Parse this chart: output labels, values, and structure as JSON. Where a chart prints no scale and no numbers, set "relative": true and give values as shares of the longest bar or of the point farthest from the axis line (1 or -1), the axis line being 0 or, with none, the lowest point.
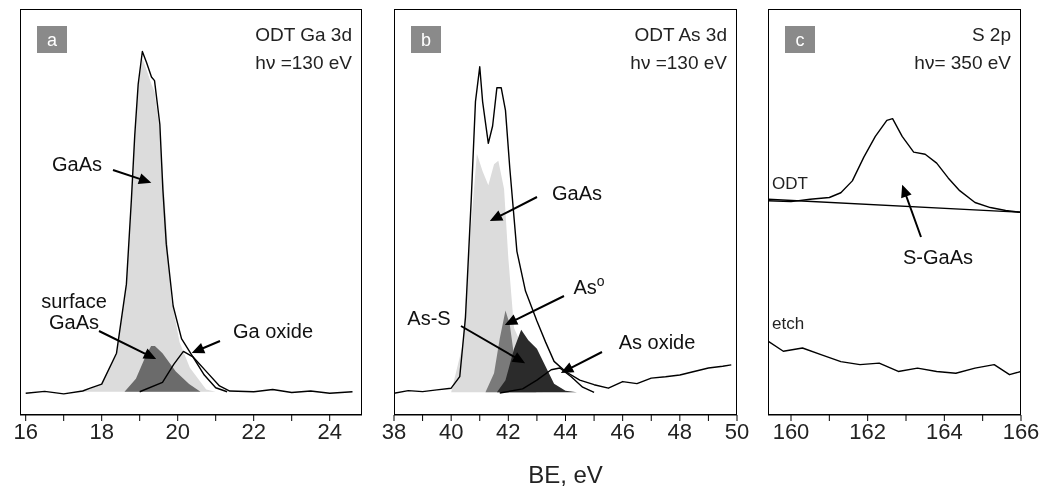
{
  "chart_data": [
    {
      "type": "line",
      "relative": true,
      "title": "ODT Ga 3d",
      "subtitle": "hν =130 eV",
      "xlim": [
        15.85,
        24.85
      ],
      "xticks": [
        16,
        {
          "value": 17,
          "label": null
        },
        18,
        {
          "value": 19,
          "label": null
        },
        20,
        {
          "value": 21,
          "label": null
        },
        22,
        {
          "value": 23,
          "label": null
        },
        24
      ],
      "series": [
        {
          "type": "area",
          "color": "#dcdcdc",
          "x": [
            17.3,
            17.7,
            18.0,
            18.4,
            18.65,
            18.78,
            18.87,
            18.96,
            19.07,
            19.18,
            19.31,
            19.39,
            19.53,
            19.66,
            19.83,
            20.05,
            20.32,
            20.75,
            21.0
          ],
          "values": [
            0.064,
            0.073,
            0.085,
            0.17,
            0.36,
            0.59,
            0.77,
            0.9,
            0.98,
            0.95,
            0.91,
            0.89,
            0.78,
            0.59,
            0.32,
            0.2,
            0.13,
            0.07,
            0.064
          ]
        },
        {
          "type": "area",
          "color": "#6b6b6b",
          "x": [
            18.6,
            18.9,
            19.15,
            19.3,
            19.4,
            19.6,
            19.95,
            20.3,
            20.6
          ],
          "values": [
            0.064,
            0.1,
            0.16,
            0.19,
            0.19,
            0.17,
            0.12,
            0.085,
            0.064
          ]
        },
        {
          "color": "#000000",
          "x": [
            19.0,
            19.6,
            19.9,
            20.15,
            20.4,
            20.7,
            21.0,
            21.3
          ],
          "values": [
            0.064,
            0.09,
            0.14,
            0.175,
            0.16,
            0.11,
            0.075,
            0.064
          ]
        },
        {
          "color": "#000000",
          "x": [
            16,
            16.5,
            17,
            17.5,
            17.68,
            18.0,
            18.39,
            18.65,
            18.78,
            18.87,
            18.96,
            19.07,
            19.18,
            19.31,
            19.39,
            19.53,
            19.61,
            19.7,
            19.88,
            20.1,
            20.4,
            20.75,
            21.1,
            21.37,
            22,
            22.5,
            23,
            23.5,
            24,
            24.6
          ],
          "values": [
            0.06,
            0.065,
            0.058,
            0.066,
            0.073,
            0.085,
            0.17,
            0.36,
            0.59,
            0.77,
            0.91,
            1,
            0.97,
            0.93,
            0.92,
            0.8,
            0.62,
            0.47,
            0.3,
            0.21,
            0.16,
            0.12,
            0.08,
            0.066,
            0.064,
            0.07,
            0.062,
            0.066,
            0.06,
            0.064
          ]
        }
      ],
      "annotations": [
        "a",
        "GaAs",
        "surface GaAs",
        "Ga oxide"
      ]
    },
    {
      "type": "line",
      "relative": true,
      "title": "ODT As 3d",
      "subtitle": "hν =130 eV",
      "xlabel": "BE, eV",
      "xlim": [
        38,
        50
      ],
      "xticks": [
        38,
        {
          "value": 39,
          "label": null
        },
        40,
        {
          "value": 41,
          "label": null
        },
        42,
        {
          "value": 43,
          "label": null
        },
        44,
        {
          "value": 45,
          "label": null
        },
        46,
        {
          "value": 47,
          "label": null
        },
        48,
        {
          "value": 49,
          "label": null
        },
        50
      ],
      "series": [
        {
          "type": "area",
          "color": "#dcdcdc",
          "x": [
            40.0,
            40.4,
            40.7,
            40.9,
            41.1,
            41.3,
            41.5,
            41.65,
            41.85,
            42.0,
            42.2,
            43.2
          ],
          "values": [
            0.065,
            0.2,
            0.55,
            0.75,
            0.7,
            0.66,
            0.72,
            0.73,
            0.65,
            0.45,
            0.25,
            0.065
          ]
        },
        {
          "type": "area",
          "color": "#7a7a7a",
          "x": [
            41.2,
            41.5,
            41.7,
            41.9,
            42.05,
            42.2,
            42.7,
            43.0
          ],
          "values": [
            0.065,
            0.12,
            0.22,
            0.3,
            0.26,
            0.17,
            0.07,
            0.065
          ]
        },
        {
          "type": "area",
          "color": "#2b2b2b",
          "x": [
            41.6,
            41.9,
            42.2,
            42.45,
            42.7,
            43.0,
            43.3,
            43.6,
            44.0,
            44.4
          ],
          "values": [
            0.065,
            0.1,
            0.19,
            0.245,
            0.215,
            0.19,
            0.14,
            0.09,
            0.07,
            0.065
          ]
        },
        {
          "color": "#000000",
          "x": [
            41.7,
            42.5,
            43.0,
            43.5,
            43.8,
            44.2,
            44.6,
            45.0
          ],
          "values": [
            0.063,
            0.075,
            0.1,
            0.13,
            0.135,
            0.11,
            0.08,
            0.065
          ]
        },
        {
          "color": "#000000",
          "x": [
            38,
            38.5,
            39,
            39.5,
            40,
            40.3,
            40.5,
            40.7,
            40.85,
            41.0,
            41.1,
            41.3,
            41.45,
            41.6,
            41.75,
            41.9,
            42.05,
            42.3,
            42.6,
            43.0,
            43.3,
            43.6,
            44.0,
            44.5,
            45,
            45.5,
            46,
            46.5,
            47,
            47.5,
            48,
            48.5,
            49,
            49.5,
            49.8
          ],
          "values": [
            0.0625,
            0.07,
            0.067,
            0.072,
            0.077,
            0.11,
            0.28,
            0.615,
            0.9,
            1,
            0.9,
            0.78,
            0.83,
            0.94,
            0.94,
            0.875,
            0.71,
            0.47,
            0.356,
            0.27,
            0.21,
            0.154,
            0.125,
            0.1,
            0.087,
            0.077,
            0.096,
            0.09,
            0.106,
            0.11,
            0.115,
            0.125,
            0.135,
            0.14,
            0.144
          ]
        }
      ],
      "annotations": [
        "b",
        "GaAs",
        "As$^{o}$",
        "As-S",
        "As oxide"
      ]
    },
    {
      "type": "line",
      "relative": true,
      "title": "S 2p",
      "subtitle": "hν= 350 eV",
      "xlim": [
        159.4,
        166
      ],
      "xticks": [
        160,
        {
          "value": 161,
          "label": null
        },
        162,
        {
          "value": 163,
          "label": null
        },
        164,
        {
          "value": 165,
          "label": null
        },
        166
      ],
      "series": [
        {
          "name": "ODT",
          "color": "#000000",
          "x": [
            159.4,
            160,
            160.5,
            161,
            161.3,
            161.6,
            161.9,
            162.2,
            162.5,
            162.65,
            162.9,
            163.2,
            163.5,
            163.8,
            164.1,
            164.4,
            164.8,
            165.2,
            165.6,
            166
          ],
          "values": [
            0.723,
            0.72,
            0.728,
            0.734,
            0.75,
            0.79,
            0.87,
            0.94,
            0.994,
            1,
            0.94,
            0.887,
            0.88,
            0.85,
            0.8,
            0.757,
            0.717,
            0.7,
            0.69,
            0.684
          ]
        },
        {
          "color": "#000000",
          "x": [
            159.4,
            166
          ],
          "values": [
            0.728,
            0.684
          ]
        },
        {
          "name": "etch",
          "color": "#000000",
          "x": [
            159.4,
            159.8,
            160.3,
            160.8,
            161.3,
            161.8,
            162.3,
            162.8,
            163.3,
            163.8,
            164.3,
            164.8,
            165.3,
            165.7,
            166
          ],
          "values": [
            0.249,
            0.215,
            0.226,
            0.203,
            0.18,
            0.17,
            0.175,
            0.147,
            0.158,
            0.147,
            0.141,
            0.158,
            0.17,
            0.136,
            0.147
          ]
        }
      ],
      "annotations": [
        "c",
        "S-GaAs"
      ]
    }
  ]
}
